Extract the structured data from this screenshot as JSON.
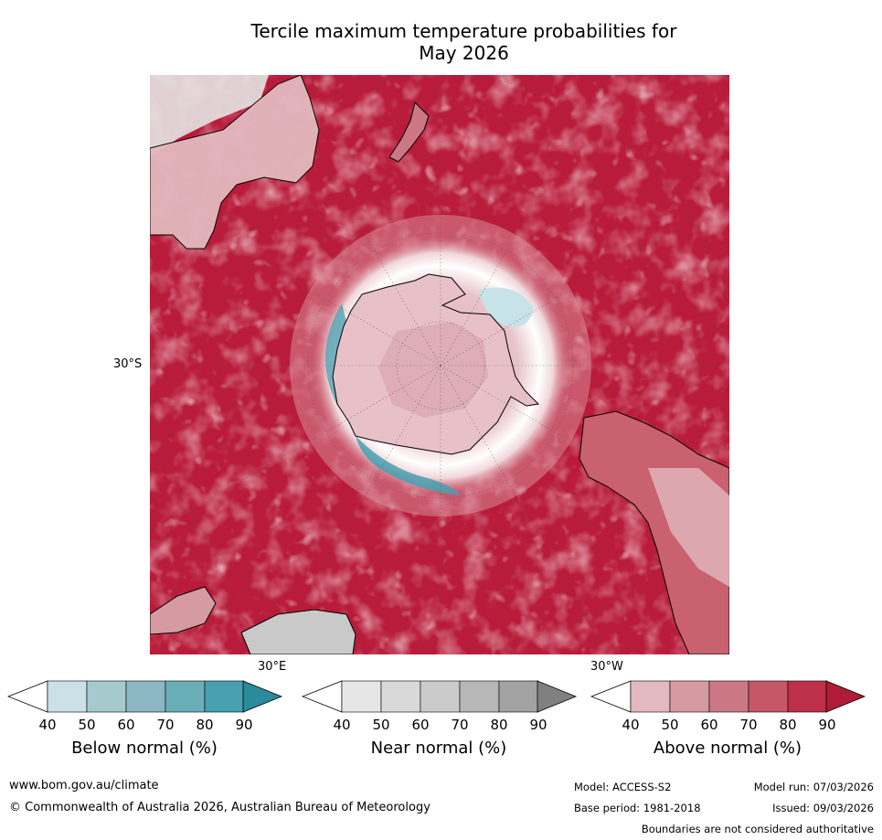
{
  "title_line1": "Tercile maximum temperature probabilities for",
  "title_line2": "May 2026",
  "map": {
    "lat_label": "30°S",
    "lon_labels": [
      "30°E",
      "30°W"
    ],
    "colors": {
      "ocean_dark": "#b81c3a",
      "ocean_mid": "#c84a5c",
      "ocean_light": "#d98090",
      "ring_pale": "#e6b3bc",
      "near_white": "#ffffff",
      "below_teal": "#5aa5b5",
      "below_light": "#c7e2e8",
      "near_grey": "#d8d8d8",
      "coast": "#000000"
    }
  },
  "colorbars": [
    {
      "label": "Below normal (%)",
      "ticks": [
        "40",
        "50",
        "60",
        "70",
        "80",
        "90"
      ],
      "colors": [
        "#c9e1e7",
        "#a6c9ce",
        "#8cb6c1",
        "#6aaeb7",
        "#47a0b0",
        "#2a8b9c"
      ]
    },
    {
      "label": "Near normal (%)",
      "ticks": [
        "40",
        "50",
        "60",
        "70",
        "80",
        "90"
      ],
      "colors": [
        "#e6e6e6",
        "#d9d9d9",
        "#cbcbcb",
        "#b7b7b7",
        "#a3a3a3",
        "#808080"
      ]
    },
    {
      "label": "Above normal (%)",
      "ticks": [
        "40",
        "50",
        "60",
        "70",
        "80",
        "90"
      ],
      "colors": [
        "#e2b9bf",
        "#d59aa2",
        "#cb7884",
        "#c55866",
        "#bc3048",
        "#b01c37"
      ]
    }
  ],
  "footer": {
    "url": "www.bom.gov.au/climate",
    "copyright": "© Commonwealth of Australia 2026, Australian Bureau of Meteorology",
    "model": "Model: ACCESS-S2",
    "model_run": "Model run: 07/03/2026",
    "base_period": "Base period: 1981-2018",
    "issued": "Issued: 09/03/2026",
    "boundaries": "Boundaries are not considered authoritative"
  }
}
